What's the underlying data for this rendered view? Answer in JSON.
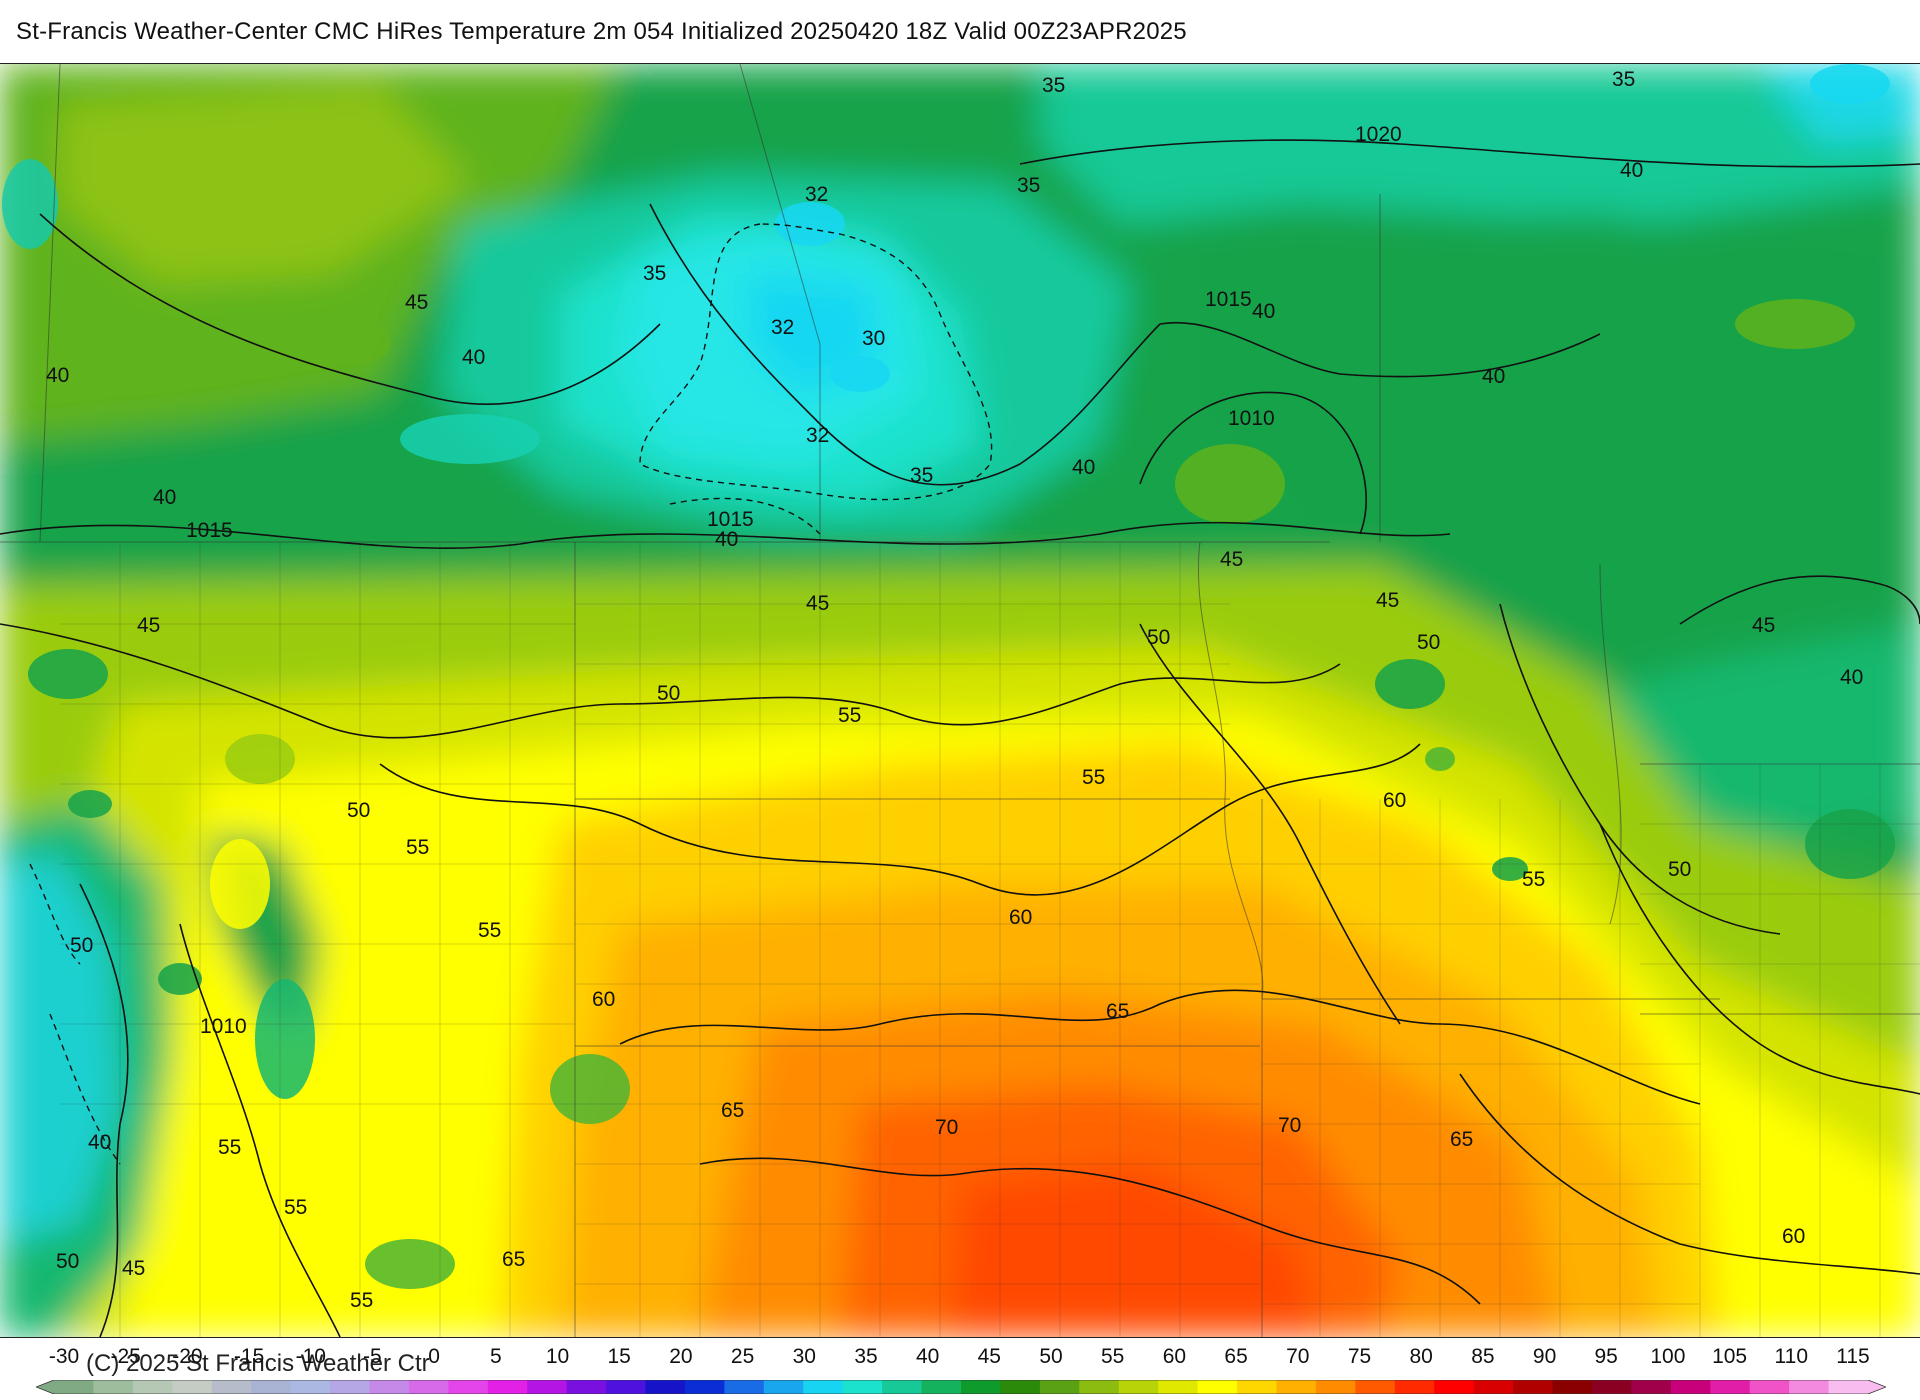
{
  "title": "St-Francis Weather-Center CMC HiRes Temperature 2m  054 Initialized 20250420 18Z Valid 00Z23APR2025",
  "credit": "(C) 2025 St Francis Weather Ctr",
  "colorbar": {
    "ticks": [
      "-30",
      "-25",
      "-20",
      "-15",
      "-10",
      "-5",
      "0",
      "5",
      "10",
      "15",
      "20",
      "25",
      "30",
      "35",
      "40",
      "45",
      "50",
      "55",
      "60",
      "65",
      "70",
      "75",
      "80",
      "85",
      "90",
      "95",
      "100",
      "105",
      "110",
      "115"
    ],
    "colors": [
      "#7faa84",
      "#9dbd9d",
      "#b4c8b4",
      "#c4ccc4",
      "#b6bcc9",
      "#a9b3d4",
      "#aab8e2",
      "#b5a6e6",
      "#c58ae8",
      "#d66ae9",
      "#e445ea",
      "#e320e6",
      "#b414e4",
      "#7a10e0",
      "#4d12de",
      "#1614c8",
      "#0a2ed6",
      "#1a6ce6",
      "#1aa6ee",
      "#16d4f2",
      "#1ae2cc",
      "#16c996",
      "#14b25c",
      "#0f9a2c",
      "#2b8a0a",
      "#5aa214",
      "#8cbc10",
      "#b8d408",
      "#e0e800",
      "#ffff00",
      "#ffd700",
      "#ffb000",
      "#ff8c00",
      "#ff5a00",
      "#ff2a00",
      "#ff0000",
      "#d80000",
      "#b00000",
      "#8a0000",
      "#8a0022",
      "#a0004a",
      "#c8007a",
      "#e01ea8",
      "#f052c8",
      "#f48ae0",
      "#f8bcee"
    ]
  },
  "map": {
    "isotherm_labels": [
      "35",
      "35",
      "1020",
      "40",
      "32",
      "35",
      "35",
      "45",
      "40",
      "1015",
      "40",
      "32",
      "30",
      "40",
      "40",
      "1010",
      "32",
      "40",
      "35",
      "40",
      "1015",
      "40",
      "1015",
      "45",
      "45",
      "45",
      "45",
      "50",
      "50",
      "45",
      "50",
      "55",
      "40",
      "55",
      "60",
      "50",
      "55",
      "50",
      "55",
      "60",
      "55",
      "50",
      "60",
      "65",
      "1010",
      "40",
      "55",
      "65",
      "70",
      "70",
      "65",
      "55",
      "60",
      "50",
      "45",
      "65",
      "55"
    ]
  }
}
